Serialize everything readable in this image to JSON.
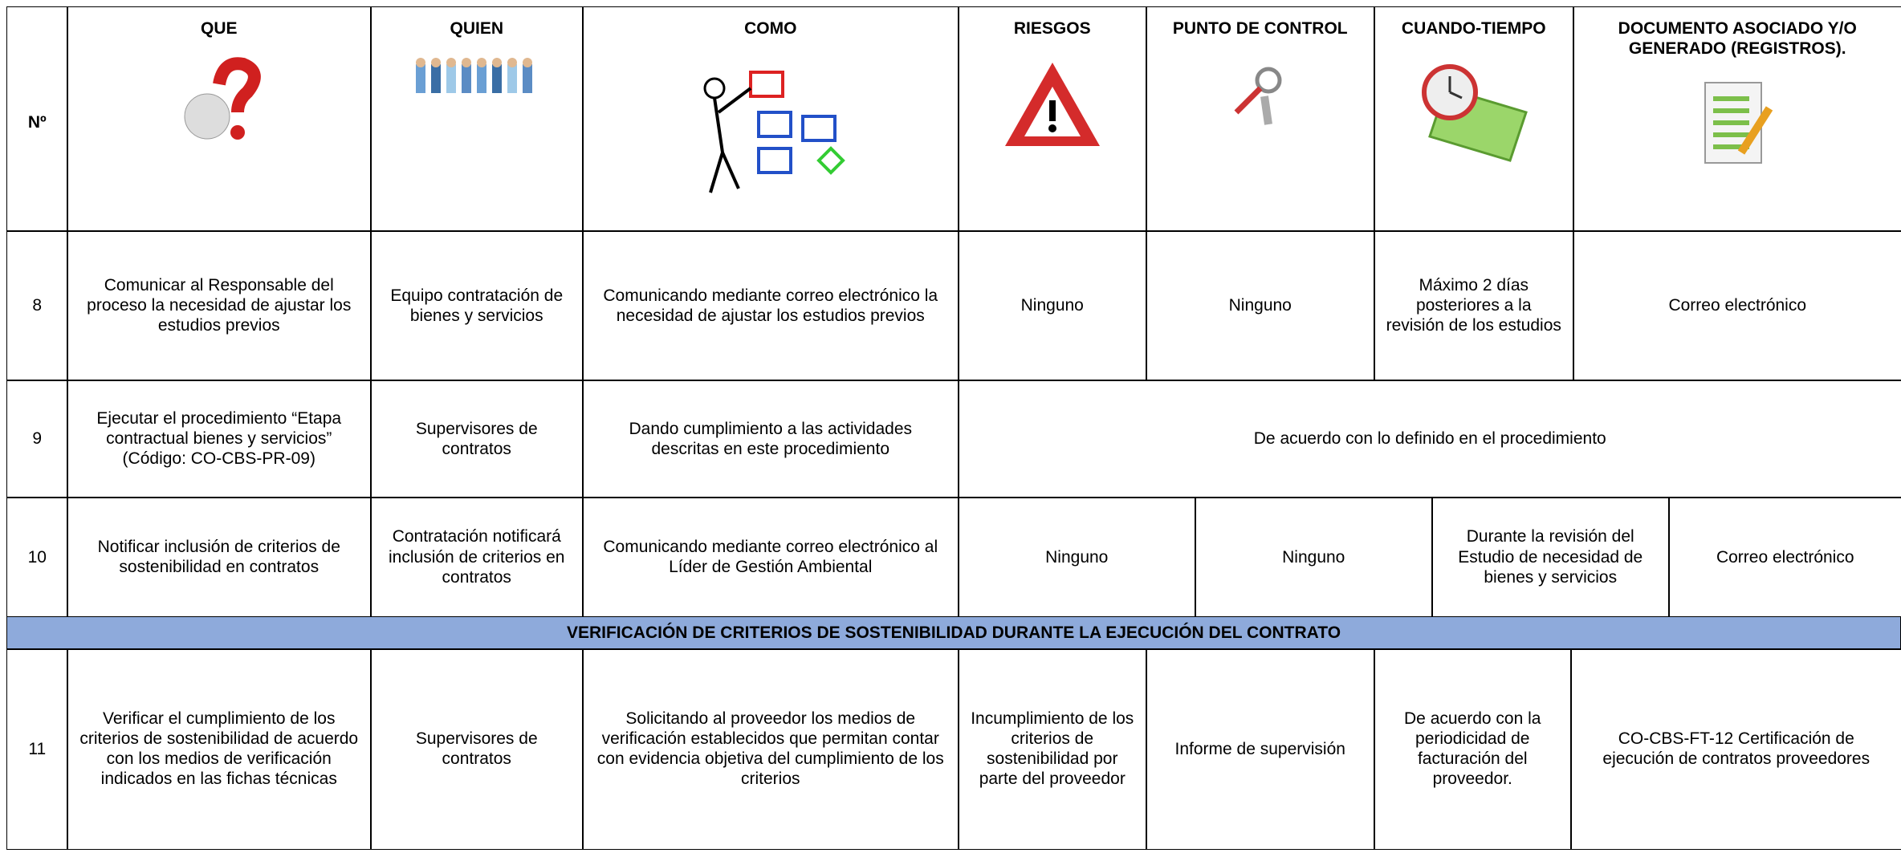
{
  "header": {
    "columns": [
      "Nº",
      "QUE",
      "QUIEN",
      "COMO",
      "RIESGOS",
      "PUNTO DE CONTROL",
      "CUANDO-TIEMPO",
      "DOCUMENTO ASOCIADO Y/O GENERADO (REGISTROS)."
    ]
  },
  "rows": [
    [
      "8",
      "Comunicar al Responsable del proceso la necesidad de ajustar los estudios previos",
      "Equipo contratación de bienes y servicios",
      "Comunicando mediante correo electrónico la necesidad de ajustar los estudios previos",
      "Ninguno",
      "Ninguno",
      "Máximo 2 días posteriores a la revisión de los estudios",
      "Correo electrónico"
    ],
    [
      "9",
      "Ejecutar el procedimiento “Etapa contractual bienes y servicios” (Código: CO-CBS-PR-09)",
      "Supervisores de contratos",
      "Dando cumplimiento a las actividades descritas en este procedimiento",
      "De acuerdo con lo definido en el procedimiento"
    ],
    [
      "10",
      "Notificar inclusión de criterios de sostenibilidad en contratos",
      "Contratación notificará inclusión de criterios en contratos",
      "Comunicando mediante correo electrónico al Líder de Gestión Ambiental",
      "Ninguno",
      "Ninguno",
      "Durante la revisión del Estudio de necesidad de bienes y servicios",
      "Correo electrónico"
    ]
  ],
  "section": "VERIFICACIÓN DE CRITERIOS DE SOSTENIBILIDAD DURANTE LA EJECUCIÓN DEL CONTRATO",
  "rows_after": [
    [
      "11",
      "Verificar el cumplimiento de los criterios de sostenibilidad de acuerdo con los medios de verificación indicados en las fichas técnicas",
      "Supervisores de contratos",
      "Solicitando al proveedor los medios de verificación establecidos que permitan contar con evidencia objetiva del cumplimiento de los criterios",
      "Incumplimiento de los criterios de sostenibilidad por parte del proveedor",
      "Informe de supervisión",
      "De acuerdo con la periodicidad de facturación del proveedor.",
      "CO-CBS-FT-12 Certificación de ejecución de contratos proveedores"
    ]
  ]
}
